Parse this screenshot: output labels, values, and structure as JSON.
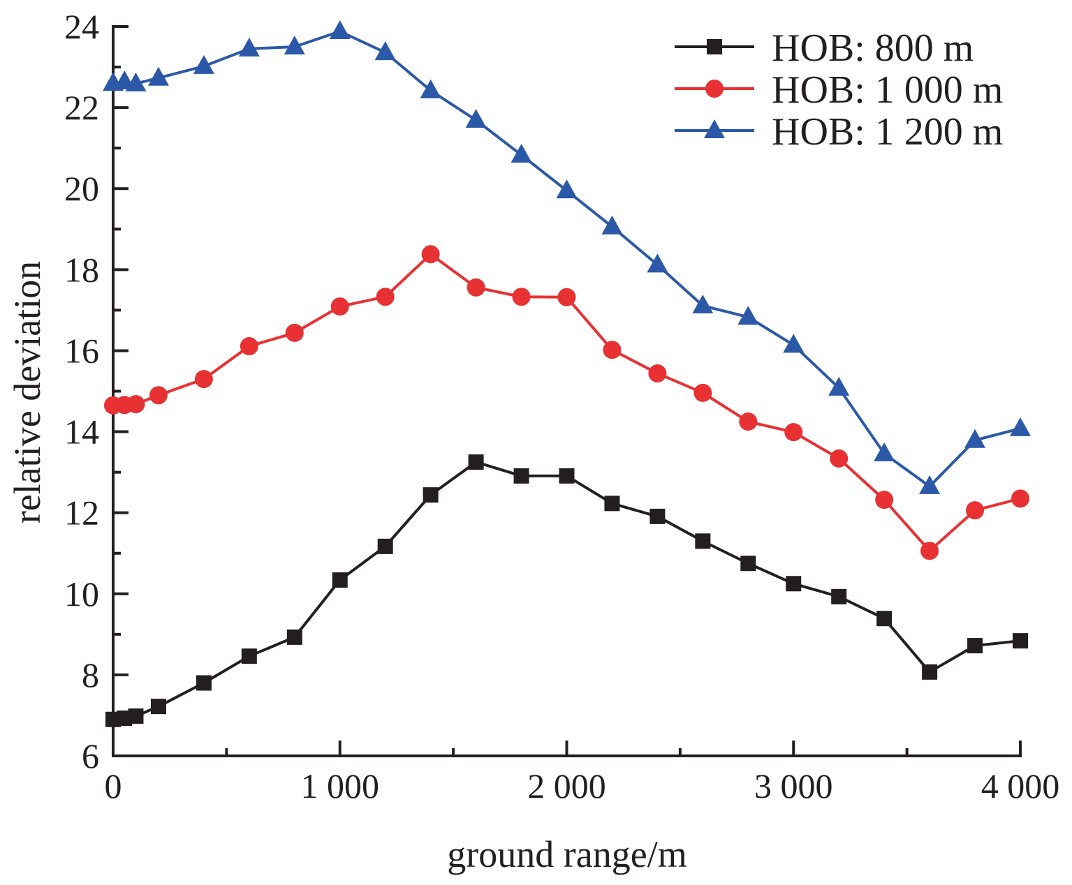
{
  "chart_data": {
    "type": "line",
    "title": "",
    "xlabel": "ground range/m",
    "ylabel": "relative deviation",
    "xlim": [
      0,
      4000
    ],
    "ylim": [
      6,
      24
    ],
    "x_ticks": [
      0,
      1000,
      2000,
      3000,
      4000
    ],
    "x_tick_labels": [
      "0",
      "1 000",
      "2 000",
      "3 000",
      "4 000"
    ],
    "x_minor_ticks": [
      500,
      1500,
      2500,
      3500
    ],
    "y_ticks": [
      6,
      8,
      10,
      12,
      14,
      16,
      18,
      20,
      22,
      24
    ],
    "y_tick_labels": [
      "6",
      "8",
      "10",
      "12",
      "14",
      "16",
      "18",
      "20",
      "22",
      "24"
    ],
    "y_minor_ticks": [
      7,
      9,
      11,
      13,
      15,
      17,
      19,
      21,
      23
    ],
    "grid": false,
    "legend_position": "top-right",
    "x": [
      0,
      50,
      100,
      200,
      400,
      600,
      800,
      1000,
      1200,
      1400,
      1600,
      1800,
      2000,
      2200,
      2400,
      2600,
      2800,
      3000,
      3200,
      3400,
      3600,
      3800,
      4000
    ],
    "series": [
      {
        "name": "HOB: 800 m",
        "color": "#231f20",
        "marker": "square",
        "values": [
          6.9,
          6.93,
          6.98,
          7.22,
          7.8,
          8.46,
          8.93,
          10.34,
          11.17,
          12.44,
          13.25,
          12.91,
          12.91,
          12.23,
          11.91,
          11.3,
          10.75,
          10.25,
          9.93,
          9.39,
          8.07,
          8.72,
          8.84
        ]
      },
      {
        "name": "HOB: 1 000 m",
        "color": "#e83132",
        "marker": "circle",
        "values": [
          14.65,
          14.66,
          14.68,
          14.9,
          15.3,
          16.11,
          16.44,
          17.09,
          17.33,
          18.38,
          17.56,
          17.33,
          17.32,
          16.02,
          15.44,
          14.96,
          14.25,
          13.99,
          13.34,
          12.32,
          11.06,
          12.06,
          12.35
        ]
      },
      {
        "name": "HOB: 1 200 m",
        "color": "#2b59a8",
        "marker": "triangle",
        "values": [
          22.6,
          22.64,
          22.59,
          22.73,
          23.02,
          23.45,
          23.5,
          23.88,
          23.36,
          22.42,
          21.69,
          20.83,
          19.95,
          19.06,
          18.12,
          17.11,
          16.83,
          16.14,
          15.08,
          13.46,
          12.65,
          13.79,
          14.08
        ]
      }
    ]
  }
}
